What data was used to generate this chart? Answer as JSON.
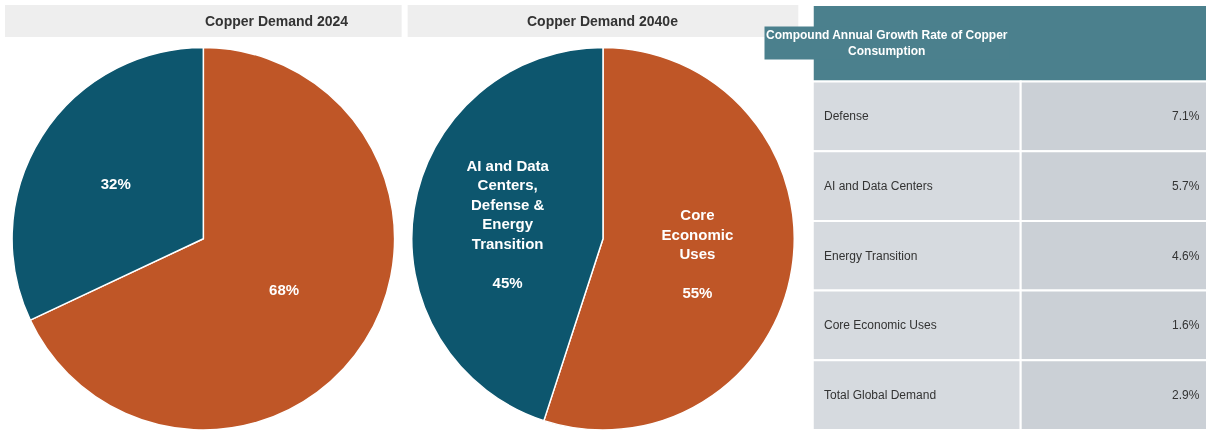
{
  "chart_data": [
    {
      "type": "pie",
      "title": "Copper Demand 2024",
      "categories": [
        null,
        null
      ],
      "values": [
        68,
        32
      ],
      "colors": [
        "#bf5627",
        "#0d566e"
      ],
      "value_labels": [
        "68%",
        "32%"
      ]
    },
    {
      "type": "pie",
      "title": "Copper Demand 2040e",
      "categories": [
        "Core\nEconomic\nUses",
        "AI and Data\nCenters,\nDefense &\nEnergy\nTransition"
      ],
      "values": [
        55,
        45
      ],
      "colors": [
        "#bf5627",
        "#0d566e"
      ],
      "value_labels": [
        "55%",
        "45%"
      ]
    },
    {
      "type": "other",
      "title": "Compound Annual Growth Rate of Copper Consumption",
      "categories": [
        "Defense",
        "AI and Data Centers",
        "Energy Transition",
        "Core Economic Uses",
        "Total Global Demand"
      ],
      "values": [
        7.1,
        5.7,
        4.6,
        1.6,
        2.9
      ],
      "value_labels": [
        "7.1%",
        "5.7%",
        "4.6%",
        "1.6%",
        "2.9%"
      ]
    }
  ]
}
